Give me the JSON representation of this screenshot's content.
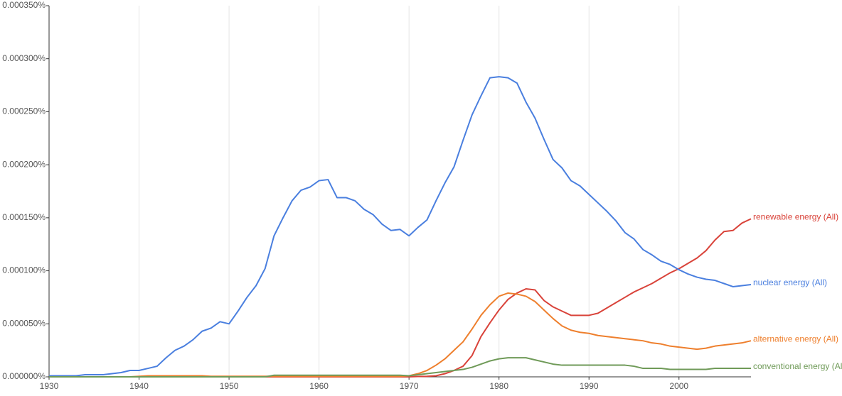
{
  "chart_data": {
    "type": "line",
    "x": [
      1930,
      1931,
      1932,
      1933,
      1934,
      1935,
      1936,
      1937,
      1938,
      1939,
      1940,
      1941,
      1942,
      1943,
      1944,
      1945,
      1946,
      1947,
      1948,
      1949,
      1950,
      1951,
      1952,
      1953,
      1954,
      1955,
      1956,
      1957,
      1958,
      1959,
      1960,
      1961,
      1962,
      1963,
      1964,
      1965,
      1966,
      1967,
      1968,
      1969,
      1970,
      1971,
      1972,
      1973,
      1974,
      1975,
      1976,
      1977,
      1978,
      1979,
      1980,
      1981,
      1982,
      1983,
      1984,
      1985,
      1986,
      1987,
      1988,
      1989,
      1990,
      1991,
      1992,
      1993,
      1994,
      1995,
      1996,
      1997,
      1998,
      1999,
      2000,
      2001,
      2002,
      2003,
      2004,
      2005,
      2006,
      2007,
      2008
    ],
    "xlim": [
      1930,
      2008
    ],
    "xticks": [
      1930,
      1940,
      1950,
      1960,
      1970,
      1980,
      1990,
      2000
    ],
    "ylim": [
      0,
      0.00035
    ],
    "yticks": [
      {
        "value": 0,
        "label": "0.000000%"
      },
      {
        "value": 5e-05,
        "label": "0.000050%"
      },
      {
        "value": 0.0001,
        "label": "0.000100%"
      },
      {
        "value": 0.00015,
        "label": "0.000150%"
      },
      {
        "value": 0.0002,
        "label": "0.000200%"
      },
      {
        "value": 0.00025,
        "label": "0.000250%"
      },
      {
        "value": 0.0003,
        "label": "0.000300%"
      },
      {
        "value": 0.00035,
        "label": "0.000350%"
      }
    ],
    "grid": true,
    "series": [
      {
        "name": "renewable energy (All)",
        "color": "#d9433a",
        "values": [
          0,
          0,
          0,
          0,
          0,
          0,
          0,
          0,
          0,
          0,
          0,
          0,
          0,
          0,
          0,
          0,
          0,
          0,
          0,
          0,
          0,
          0,
          0,
          0,
          0,
          0,
          0,
          0,
          0,
          0,
          0,
          0,
          0,
          0,
          0,
          0,
          0,
          0,
          0,
          0,
          0,
          3e-07,
          5e-07,
          1e-06,
          3e-06,
          6e-06,
          1e-05,
          2e-05,
          3.8e-05,
          5.1e-05,
          6.3e-05,
          7.3e-05,
          7.9e-05,
          8.3e-05,
          8.2e-05,
          7.2e-05,
          6.6e-05,
          6.2e-05,
          5.8e-05,
          5.8e-05,
          5.8e-05,
          6e-05,
          6.5e-05,
          7e-05,
          7.5e-05,
          8e-05,
          8.4e-05,
          8.8e-05,
          9.3e-05,
          9.8e-05,
          0.000102,
          0.000107,
          0.000112,
          0.000119,
          0.000129,
          0.000137,
          0.000138,
          0.000145,
          0.000149
        ]
      },
      {
        "name": "nuclear energy (All)",
        "color": "#4a7fdf",
        "values": [
          1e-06,
          1e-06,
          1e-06,
          1e-06,
          2e-06,
          2e-06,
          2e-06,
          3e-06,
          4e-06,
          6e-06,
          6e-06,
          8e-06,
          1e-05,
          1.8e-05,
          2.5e-05,
          2.9e-05,
          3.5e-05,
          4.3e-05,
          4.6e-05,
          5.2e-05,
          5e-05,
          6.2e-05,
          7.5e-05,
          8.6e-05,
          0.000102,
          0.000133,
          0.00015,
          0.000166,
          0.000176,
          0.000179,
          0.000185,
          0.000186,
          0.000169,
          0.000169,
          0.000166,
          0.000158,
          0.000153,
          0.000144,
          0.000138,
          0.000139,
          0.000133,
          0.000141,
          0.000148,
          0.000166,
          0.000183,
          0.000198,
          0.000223,
          0.000247,
          0.000265,
          0.000282,
          0.000283,
          0.000282,
          0.000277,
          0.000259,
          0.000244,
          0.000224,
          0.000205,
          0.000197,
          0.000185,
          0.00018,
          0.000172,
          0.000164,
          0.000156,
          0.000147,
          0.000136,
          0.00013,
          0.00012,
          0.000115,
          0.000109,
          0.000106,
          0.000101,
          9.7e-05,
          9.4e-05,
          9.2e-05,
          9.1e-05,
          8.8e-05,
          8.5e-05,
          8.6e-05,
          8.7e-05
        ]
      },
      {
        "name": "alternative energy (All)",
        "color": "#ee7f2d",
        "values": [
          0,
          0,
          0,
          0,
          0,
          0,
          0,
          0,
          0,
          0,
          5e-07,
          1e-06,
          1e-06,
          1e-06,
          1e-06,
          1e-06,
          1e-06,
          1e-06,
          5e-07,
          5e-07,
          5e-07,
          5e-07,
          5e-07,
          5e-07,
          5e-07,
          5e-07,
          5e-07,
          5e-07,
          5e-07,
          5e-07,
          5e-07,
          5e-07,
          5e-07,
          5e-07,
          5e-07,
          5e-07,
          5e-07,
          5e-07,
          5e-07,
          5e-07,
          1e-06,
          3e-06,
          6e-06,
          1.1e-05,
          1.7e-05,
          2.5e-05,
          3.3e-05,
          4.5e-05,
          5.8e-05,
          6.8e-05,
          7.6e-05,
          7.9e-05,
          7.8e-05,
          7.6e-05,
          7.1e-05,
          6.3e-05,
          5.5e-05,
          4.8e-05,
          4.4e-05,
          4.2e-05,
          4.1e-05,
          3.9e-05,
          3.8e-05,
          3.7e-05,
          3.6e-05,
          3.5e-05,
          3.4e-05,
          3.2e-05,
          3.1e-05,
          2.9e-05,
          2.8e-05,
          2.7e-05,
          2.6e-05,
          2.7e-05,
          2.9e-05,
          3e-05,
          3.1e-05,
          3.2e-05,
          3.4e-05
        ]
      },
      {
        "name": "conventional energy (All)",
        "color": "#6f9a58",
        "values": [
          0,
          0,
          0,
          0,
          0,
          0,
          0,
          0,
          0,
          0,
          0,
          0,
          0,
          0,
          0,
          0,
          0,
          0,
          0,
          0,
          0,
          0,
          0,
          0,
          0,
          1.5e-06,
          1.5e-06,
          1.5e-06,
          1.5e-06,
          1.5e-06,
          1.5e-06,
          1.5e-06,
          1.5e-06,
          1.5e-06,
          1.5e-06,
          1.5e-06,
          1.5e-06,
          1.5e-06,
          1.5e-06,
          1.5e-06,
          1e-06,
          2e-06,
          3e-06,
          4e-06,
          5e-06,
          6e-06,
          7e-06,
          9e-06,
          1.2e-05,
          1.5e-05,
          1.7e-05,
          1.8e-05,
          1.8e-05,
          1.8e-05,
          1.6e-05,
          1.4e-05,
          1.2e-05,
          1.1e-05,
          1.1e-05,
          1.1e-05,
          1.1e-05,
          1.1e-05,
          1.1e-05,
          1.1e-05,
          1.1e-05,
          1e-05,
          8e-06,
          8e-06,
          8e-06,
          7e-06,
          7e-06,
          7e-06,
          7e-06,
          7e-06,
          8e-06,
          8e-06,
          8e-06,
          8e-06,
          8e-06
        ]
      }
    ]
  }
}
